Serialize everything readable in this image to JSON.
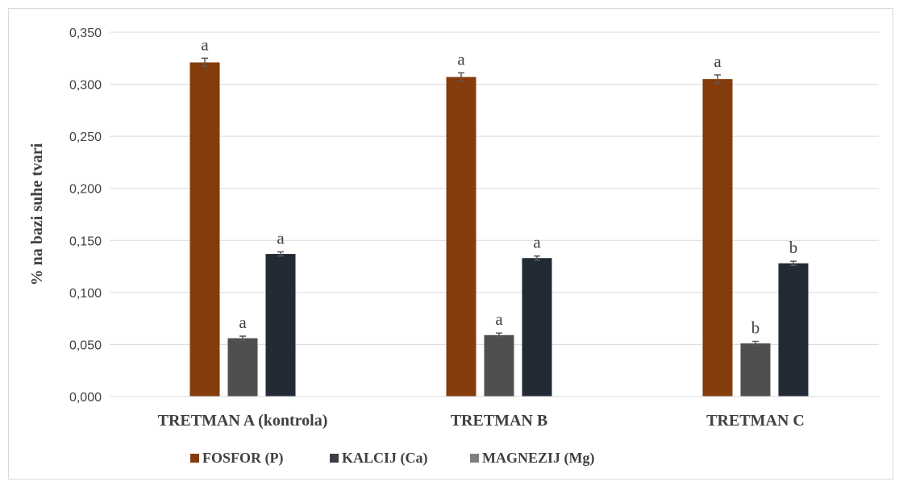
{
  "chart_data": {
    "type": "bar",
    "ylabel": "% na bazi suhe tvari",
    "ylim": [
      0,
      0.35
    ],
    "yticks": [
      "0,000",
      "0,050",
      "0,100",
      "0,150",
      "0,200",
      "0,250",
      "0,300",
      "0,350"
    ],
    "ytick_values": [
      0,
      0.05,
      0.1,
      0.15,
      0.2,
      0.25,
      0.3,
      0.35
    ],
    "grid": true,
    "legend_position": "bottom",
    "categories": [
      "TRETMAN A (kontrola)",
      "TRETMAN B",
      "TRETMAN C"
    ],
    "series": [
      {
        "name": "FOSFOR (P)",
        "color": "#843c0c",
        "values": [
          0.321,
          0.307,
          0.305
        ],
        "errors": [
          0.004,
          0.004,
          0.004
        ],
        "labels": [
          "a",
          "a",
          "a"
        ]
      },
      {
        "name": "MAGNEZIJ (Mg)",
        "color": "#4f4f4f",
        "values": [
          0.056,
          0.059,
          0.051
        ],
        "errors": [
          0.002,
          0.002,
          0.002
        ],
        "labels": [
          "a",
          "a",
          "b"
        ]
      },
      {
        "name": "KALCIJ (Ca)",
        "color": "#222a35",
        "values": [
          0.137,
          0.133,
          0.128
        ],
        "errors": [
          0.002,
          0.002,
          0.002
        ],
        "labels": [
          "a",
          "a",
          "b"
        ]
      }
    ],
    "legend": [
      {
        "name": "FOSFOR (P)",
        "color": "#843c0c"
      },
      {
        "name": "KALCIJ (Ca)",
        "color": "#3b3f45"
      },
      {
        "name": "MAGNEZIJ (Mg)",
        "color": "#7f7f7f"
      }
    ]
  }
}
